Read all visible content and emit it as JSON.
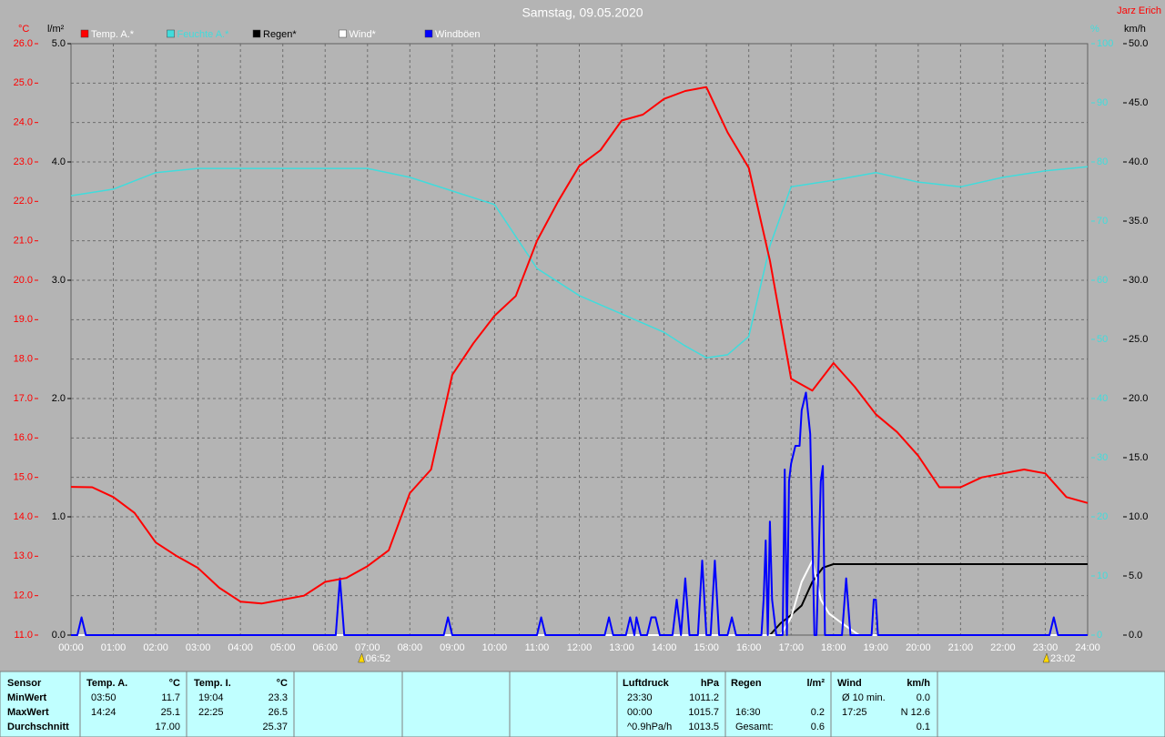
{
  "chart_data": {
    "type": "line",
    "title": "Samstag, 09.05.2020",
    "author": "Jarz Erich",
    "grid": true,
    "legend": "top",
    "xlim": [
      0,
      24
    ],
    "xticks": [
      {
        "value": 0,
        "label": "00:00"
      },
      {
        "value": 1,
        "label": "01:00"
      },
      {
        "value": 2,
        "label": "02:00"
      },
      {
        "value": 3,
        "label": "03:00"
      },
      {
        "value": 4,
        "label": "04:00"
      },
      {
        "value": 5,
        "label": "05:00"
      },
      {
        "value": 6,
        "label": "06:00"
      },
      {
        "value": 7,
        "label": "07:00"
      },
      {
        "value": 8,
        "label": "08:00"
      },
      {
        "value": 9,
        "label": "09:00"
      },
      {
        "value": 10,
        "label": "10:00"
      },
      {
        "value": 11,
        "label": "11:00"
      },
      {
        "value": 12,
        "label": "12:00"
      },
      {
        "value": 13,
        "label": "13:00"
      },
      {
        "value": 14,
        "label": "14:00"
      },
      {
        "value": 15,
        "label": "15:00"
      },
      {
        "value": 16,
        "label": "16:00"
      },
      {
        "value": 17,
        "label": "17:00"
      },
      {
        "value": 18,
        "label": "18:00"
      },
      {
        "value": 19,
        "label": "19:00"
      },
      {
        "value": 20,
        "label": "20:00"
      },
      {
        "value": 21,
        "label": "21:00"
      },
      {
        "value": 22,
        "label": "22:00"
      },
      {
        "value": 23,
        "label": "23:00"
      },
      {
        "value": 24,
        "label": "24:00"
      }
    ],
    "y_label": "°C",
    "ylim": [
      11,
      26
    ],
    "yticks": [
      {
        "value": 11,
        "label": "11.0"
      },
      {
        "value": 12,
        "label": "12.0"
      },
      {
        "value": 13,
        "label": "13.0"
      },
      {
        "value": 14,
        "label": "14.0"
      },
      {
        "value": 15,
        "label": "15.0"
      },
      {
        "value": 16,
        "label": "16.0"
      },
      {
        "value": 17,
        "label": "17.0"
      },
      {
        "value": 18,
        "label": "18.0"
      },
      {
        "value": 19,
        "label": "19.0"
      },
      {
        "value": 20,
        "label": "20.0"
      },
      {
        "value": 21,
        "label": "21.0"
      },
      {
        "value": 22,
        "label": "22.0"
      },
      {
        "value": 23,
        "label": "23.0"
      },
      {
        "value": 24,
        "label": "24.0"
      },
      {
        "value": 25,
        "label": "25.0"
      },
      {
        "value": 26,
        "label": "26.0"
      }
    ],
    "y2_label": "l/m²",
    "y2lim": [
      0,
      5
    ],
    "y2ticks": [
      {
        "value": 0,
        "label": "0.0"
      },
      {
        "value": 1,
        "label": "1.0"
      },
      {
        "value": 2,
        "label": "2.0"
      },
      {
        "value": 3,
        "label": "3.0"
      },
      {
        "value": 4,
        "label": "4.0"
      },
      {
        "value": 5,
        "label": "5.0"
      }
    ],
    "y3_label": "%",
    "y3lim": [
      0,
      100
    ],
    "y3ticks": [
      0,
      10,
      20,
      30,
      40,
      50,
      60,
      70,
      80,
      90,
      100
    ],
    "y4_label": "km/h",
    "y4lim": [
      0,
      50
    ],
    "y4ticks": [
      {
        "value": 0,
        "label": "0.0"
      },
      {
        "value": 5,
        "label": "5.0"
      },
      {
        "value": 10,
        "label": "10.0"
      },
      {
        "value": 15,
        "label": "15.0"
      },
      {
        "value": 20,
        "label": "20.0"
      },
      {
        "value": 25,
        "label": "25.0"
      },
      {
        "value": 30,
        "label": "30.0"
      },
      {
        "value": 35,
        "label": "35.0"
      },
      {
        "value": 40,
        "label": "40.0"
      },
      {
        "value": 45,
        "label": "45.0"
      },
      {
        "value": 50,
        "label": "50.0"
      }
    ],
    "series": [
      {
        "name": "Temp. A.*",
        "color": "#ff0000",
        "axis": "y",
        "x": [
          0,
          0.5,
          1,
          1.5,
          2,
          2.5,
          3,
          3.5,
          4,
          4.5,
          5,
          5.5,
          6,
          6.5,
          7,
          7.5,
          8,
          8.5,
          9,
          9.5,
          10,
          10.5,
          11,
          11.5,
          12,
          12.5,
          13,
          13.5,
          14,
          14.5,
          15,
          15.5,
          16,
          16.5,
          17,
          17.5,
          18,
          18.5,
          19,
          19.5,
          20,
          20.5,
          21,
          21.5,
          22,
          22.5,
          23,
          23.5,
          24
        ],
        "values": [
          14.76,
          14.75,
          14.5,
          14.1,
          13.35,
          13.0,
          12.7,
          12.2,
          11.85,
          11.8,
          11.9,
          12.0,
          12.35,
          12.45,
          12.75,
          13.15,
          14.6,
          15.2,
          17.6,
          18.4,
          19.1,
          19.6,
          21.0,
          22.0,
          22.9,
          23.3,
          24.05,
          24.2,
          24.6,
          24.8,
          24.9,
          23.75,
          22.85,
          20.5,
          17.5,
          17.2,
          17.9,
          17.3,
          16.6,
          16.15,
          15.55,
          14.75,
          14.75,
          15.0,
          15.1,
          15.2,
          15.1,
          14.5,
          14.35
        ]
      },
      {
        "name": "Feuchte A.*",
        "color": "#40dcdc",
        "axis": "y3",
        "x": [
          0,
          1,
          2,
          3,
          4,
          5,
          6,
          7,
          8,
          9,
          10,
          11,
          12,
          13,
          14,
          14.5,
          15,
          15.5,
          16,
          16.5,
          17,
          18,
          19,
          20,
          21,
          22,
          23,
          24
        ],
        "values": [
          74.3,
          75.4,
          78.2,
          78.9,
          78.9,
          78.9,
          78.9,
          78.9,
          77.4,
          75.1,
          72.8,
          62,
          57.4,
          54.3,
          51.2,
          48.9,
          46.9,
          47.4,
          50.5,
          65.8,
          75.8,
          76.9,
          78.2,
          76.6,
          75.8,
          77.4,
          78.5,
          79.2
        ]
      },
      {
        "name": "Regen*",
        "color": "#000000",
        "axis": "y2",
        "x": [
          0,
          16.5,
          16.75,
          17,
          17.25,
          17.5,
          17.75,
          18,
          24
        ],
        "values": [
          0,
          0,
          0.1,
          0.17,
          0.25,
          0.45,
          0.57,
          0.6,
          0.6
        ]
      },
      {
        "name": "Wind*",
        "color": "#ffffff",
        "axis": "y4",
        "x": [
          0,
          16.75,
          17,
          17.25,
          17.5,
          17.7,
          17.9,
          18.2,
          18.6,
          24
        ],
        "values": [
          0,
          0,
          1.5,
          4.5,
          6.3,
          3,
          1.8,
          1,
          0,
          0
        ]
      },
      {
        "name": "Windböen",
        "color": "#0000ff",
        "axis": "y4",
        "x": [
          0,
          0.15,
          0.25,
          0.35,
          6.25,
          6.35,
          6.45,
          8.8,
          8.9,
          9.0,
          11.0,
          11.1,
          11.2,
          12.6,
          12.7,
          12.8,
          13.1,
          13.2,
          13.3,
          13.35,
          13.45,
          13.6,
          13.7,
          13.8,
          13.9,
          14.2,
          14.3,
          14.4,
          14.5,
          14.6,
          14.8,
          14.9,
          15.0,
          15.1,
          15.2,
          15.3,
          15.5,
          15.6,
          15.7,
          16.3,
          16.35,
          16.4,
          16.45,
          16.5,
          16.55,
          16.65,
          16.8,
          16.85,
          16.9,
          16.95,
          17.0,
          17.1,
          17.2,
          17.25,
          17.35,
          17.45,
          17.55,
          17.6,
          17.7,
          17.75,
          17.8,
          18.2,
          18.3,
          18.4,
          18.9,
          18.95,
          19.0,
          19.05,
          23.1,
          23.2,
          23.3,
          24
        ],
        "values": [
          0,
          0,
          1.5,
          0,
          0,
          4.8,
          0,
          0,
          1.5,
          0,
          0,
          1.5,
          0,
          0,
          1.5,
          0,
          0,
          1.5,
          0,
          1.5,
          0,
          0,
          1.5,
          1.5,
          0,
          0,
          3.0,
          0,
          4.8,
          0,
          0,
          6.3,
          0,
          0,
          6.3,
          0,
          0,
          1.5,
          0,
          0,
          3.0,
          8.0,
          0,
          9.6,
          3.0,
          0,
          0,
          14.0,
          0,
          13.0,
          14.5,
          16,
          16,
          19,
          20.5,
          17,
          0,
          0,
          13.0,
          14.3,
          0,
          0,
          4.8,
          0,
          0,
          3.0,
          3.0,
          0,
          0,
          1.5,
          0,
          0
        ]
      }
    ],
    "annotations": [
      {
        "x": 6.8667,
        "label": "06:52"
      },
      {
        "x": 23.0333,
        "label": "23:02"
      }
    ]
  },
  "stats": {
    "row_labels": [
      "Sensor",
      "MinWert",
      "MaxWert",
      "Durchschnitt"
    ],
    "groups": [
      {
        "header": [
          "Temp. A.",
          "°C"
        ],
        "rows": [
          {
            "time": "03:50",
            "value": "11.7"
          },
          {
            "time": "14:24",
            "value": "25.1"
          },
          {
            "value": "17.00"
          }
        ]
      },
      {
        "header": [
          "Temp. I.",
          "°C"
        ],
        "rows": [
          {
            "time": "19:04",
            "value": "23.3"
          },
          {
            "time": "22:25",
            "value": "26.5"
          },
          {
            "value": "25.37"
          }
        ]
      },
      {
        "header": [
          "Luftdruck",
          "hPa"
        ],
        "rows": [
          {
            "time": "23:30",
            "value": "1011.2"
          },
          {
            "time": "00:00",
            "value": "1015.7"
          },
          {
            "time": "^0.9hPa/h",
            "value": "1013.5"
          }
        ]
      },
      {
        "header": [
          "Regen",
          "l/m²"
        ],
        "rows": [
          {},
          {
            "time": "16:30",
            "value": "0.2"
          },
          {
            "time": "Gesamt:",
            "value": "0.6"
          }
        ]
      },
      {
        "header": [
          "Wind",
          "km/h"
        ],
        "rows": [
          {
            "time": "Ø 10 min.",
            "value": "0.0"
          },
          {
            "time": "17:25",
            "value": "N 12.6"
          },
          {
            "value": "0.1"
          }
        ]
      }
    ]
  }
}
